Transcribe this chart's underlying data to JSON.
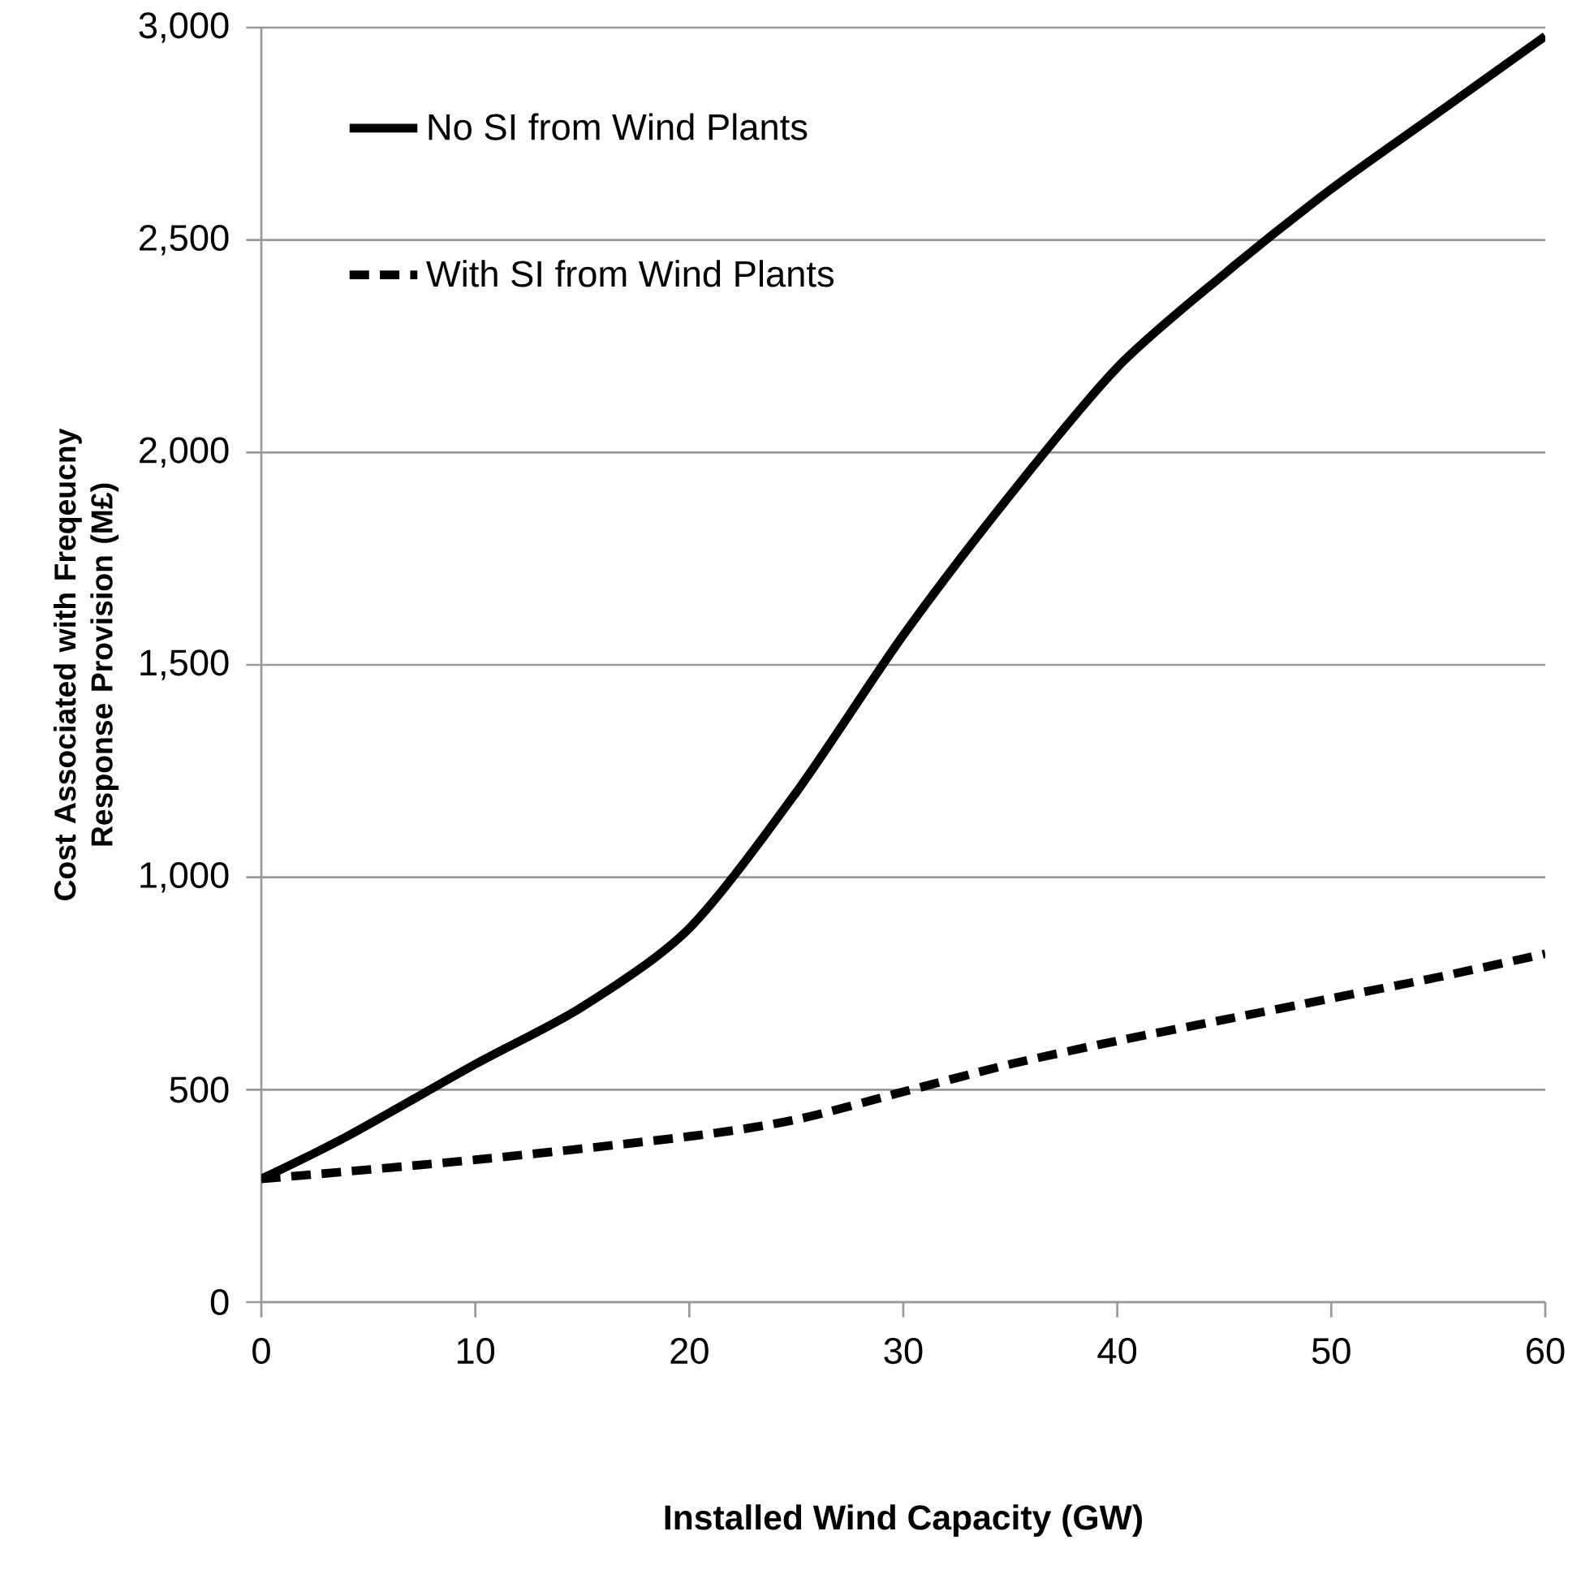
{
  "chart_data": {
    "type": "line",
    "xlabel": "Installed Wind Capacity (GW)",
    "ylabel": "Cost Associated with Freqeucny Response Provision (M£)",
    "xlim": [
      0,
      60
    ],
    "xticks": [
      0,
      10,
      20,
      30,
      40,
      50,
      60
    ],
    "ylim": [
      0,
      3000
    ],
    "yticks": [
      {
        "value": 0,
        "label": "0"
      },
      {
        "value": 500,
        "label": "500"
      },
      {
        "value": 1000,
        "label": "1,000"
      },
      {
        "value": 1500,
        "label": "1,500"
      },
      {
        "value": 2000,
        "label": "2,000"
      },
      {
        "value": 2500,
        "label": "2,500"
      },
      {
        "value": 3000,
        "label": "3,000"
      }
    ],
    "grid": "y",
    "legend": "top left",
    "series": [
      {
        "name": "No SI from Wind Plants",
        "color": "#000000",
        "line_style": "solid",
        "x": [
          0,
          4,
          10,
          15,
          20,
          25,
          30,
          35,
          40,
          45,
          50,
          55,
          60
        ],
        "values": [
          290,
          390,
          560,
          695,
          880,
          1200,
          1570,
          1900,
          2200,
          2420,
          2620,
          2800,
          2980
        ]
      },
      {
        "name": "With SI from Wind Plants",
        "color": "#000000",
        "line_style": "dashed",
        "x": [
          0,
          10,
          20,
          25,
          30,
          35,
          40,
          45,
          50,
          55,
          60
        ],
        "values": [
          290,
          335,
          390,
          430,
          495,
          560,
          615,
          665,
          715,
          765,
          820
        ]
      }
    ]
  }
}
